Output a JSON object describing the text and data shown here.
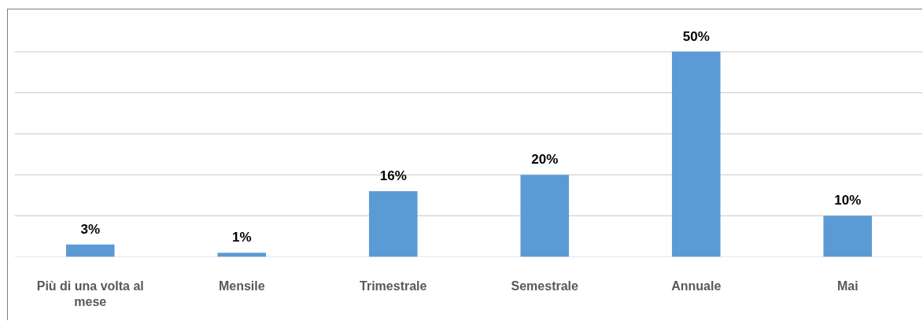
{
  "chart_data": {
    "type": "bar",
    "categories": [
      "Più di una volta al mese",
      "Mensile",
      "Trimestrale",
      "Semestrale",
      "Annuale",
      "Mai"
    ],
    "values": [
      3,
      1,
      16,
      20,
      50,
      10
    ],
    "value_labels": [
      "3%",
      "1%",
      "16%",
      "20%",
      "50%",
      "10%"
    ],
    "color": "#5b9bd5",
    "ylim": [
      0,
      60
    ],
    "yticks": [
      {
        "value": 0,
        "label": null
      },
      {
        "value": 10,
        "label": null
      },
      {
        "value": 20,
        "label": null
      },
      {
        "value": 30,
        "label": null
      },
      {
        "value": 40,
        "label": null
      },
      {
        "value": 50,
        "label": null
      }
    ],
    "tick_labels": "x",
    "grid": "y"
  }
}
